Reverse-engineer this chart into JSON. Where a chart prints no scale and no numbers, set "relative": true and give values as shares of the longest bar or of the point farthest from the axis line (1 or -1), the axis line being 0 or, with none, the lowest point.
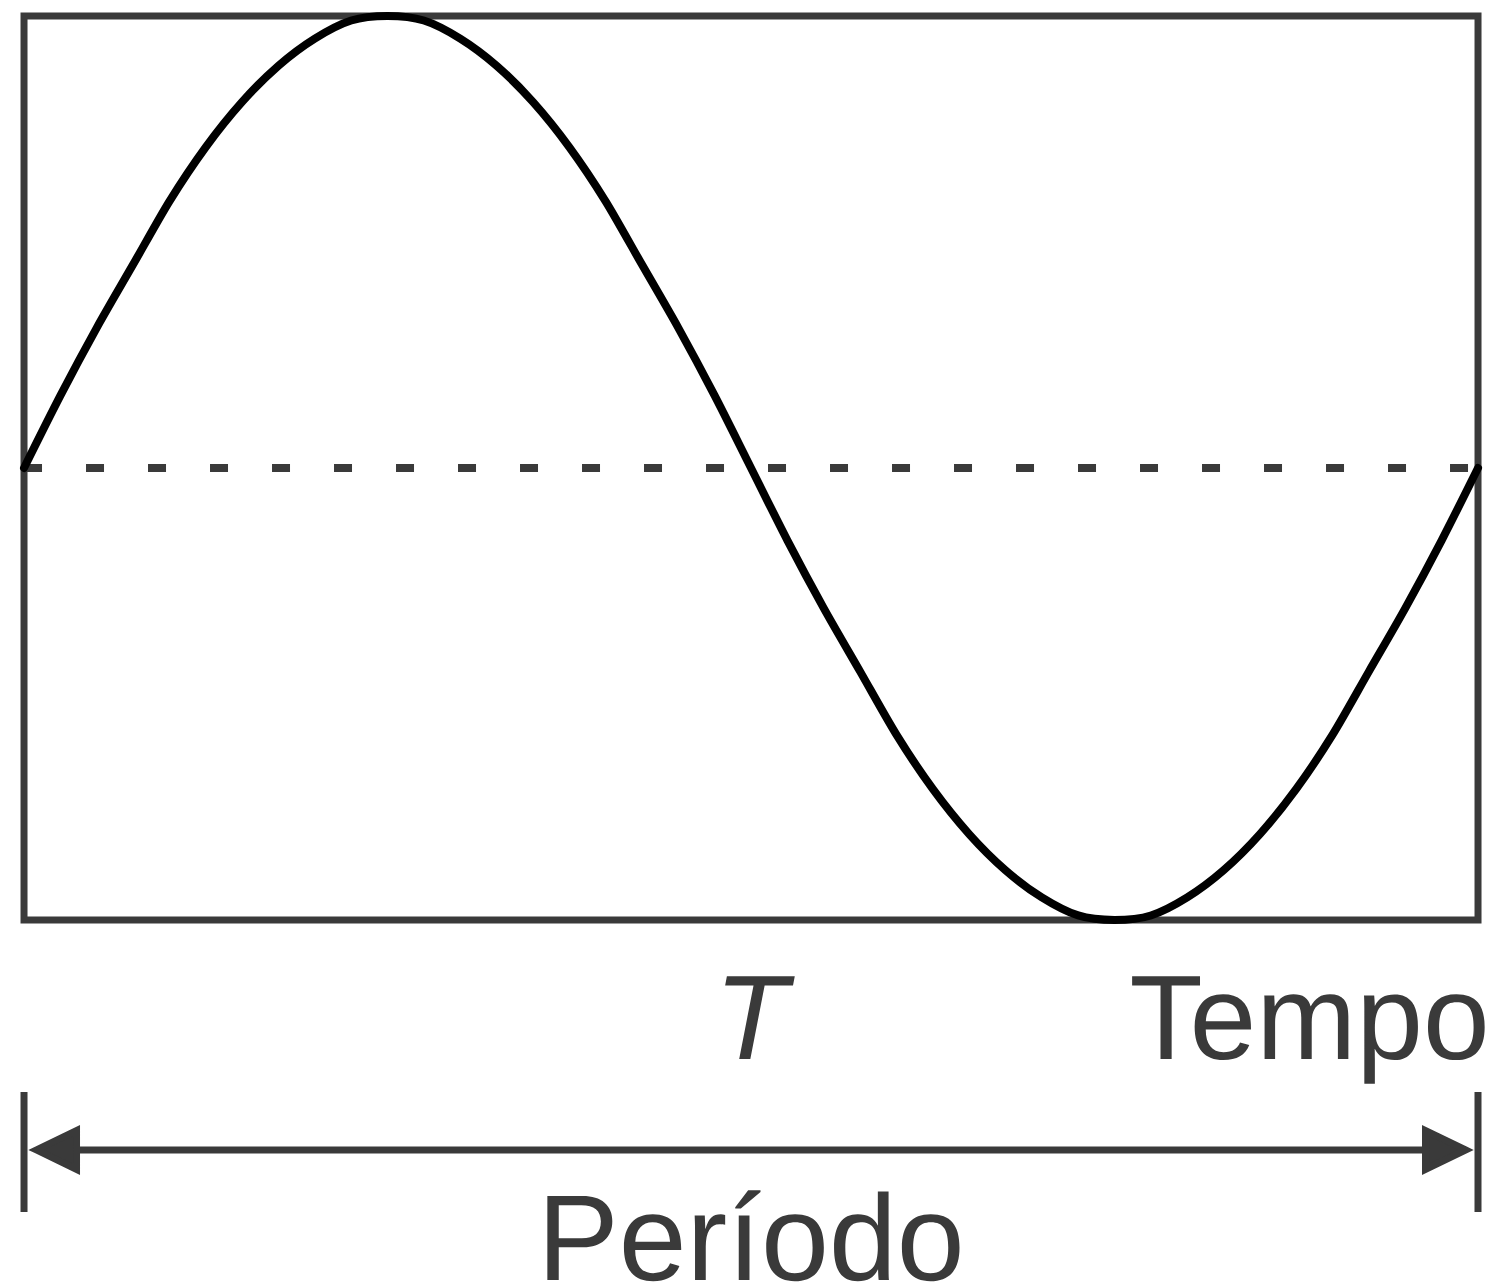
{
  "chart_data": {
    "type": "line",
    "relative": true,
    "xlabel": "Tempo",
    "annotations": [
      "T",
      "Período"
    ],
    "categories": [
      null,
      null,
      null,
      null,
      null,
      null,
      null,
      null,
      null,
      null,
      null,
      null,
      null,
      null,
      null,
      null,
      null,
      null,
      null,
      null,
      null,
      null,
      null,
      null,
      null,
      null,
      null,
      null,
      null,
      null,
      null,
      null,
      null,
      null,
      null,
      null,
      null,
      null,
      null,
      null,
      null
    ],
    "values": [
      0,
      0.16,
      0.31,
      0.45,
      0.59,
      0.71,
      0.81,
      0.89,
      0.95,
      0.99,
      1,
      0.99,
      0.95,
      0.89,
      0.81,
      0.71,
      0.59,
      0.45,
      0.31,
      0.16,
      0,
      -0.16,
      -0.31,
      -0.45,
      -0.59,
      -0.71,
      -0.81,
      -0.89,
      -0.95,
      -0.99,
      -1,
      -0.99,
      -0.95,
      -0.89,
      -0.81,
      -0.71,
      -0.59,
      -0.45,
      -0.31,
      -0.16,
      0
    ],
    "color": "#000000",
    "line_style": "solid",
    "ref_lines": [
      {
        "axis": "y",
        "value": 0,
        "line_style": "dashed",
        "color": "#3a3a3a"
      }
    ]
  }
}
